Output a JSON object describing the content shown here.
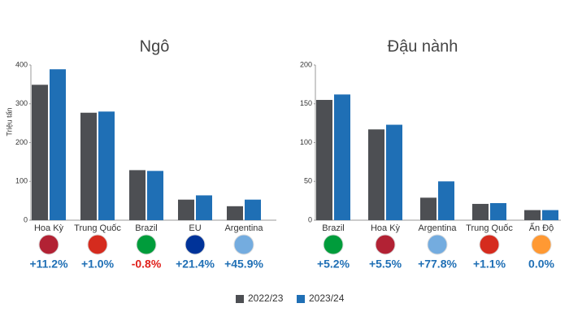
{
  "chart_data": [
    {
      "type": "bar",
      "title": "Ngô",
      "y_label": "Triệu tấn",
      "categories": [
        "Hoa Kỳ",
        "Trung Quốc",
        "Brazil",
        "EU",
        "Argentina"
      ],
      "series": [
        {
          "name": "2022/23",
          "color": "#4d4f53",
          "values": [
            349,
            277,
            129,
            53,
            36
          ]
        },
        {
          "name": "2023/24",
          "color": "#1f6fb5",
          "values": [
            389,
            280,
            127,
            64,
            53
          ]
        }
      ],
      "change_labels": [
        "+11.2%",
        "+1.0%",
        "-0.8%",
        "+21.4%",
        "+45.9%"
      ],
      "ylim": [
        0,
        400
      ],
      "yticks": [
        0,
        100,
        200,
        300,
        400
      ],
      "grid": false
    },
    {
      "type": "bar",
      "title": "Đậu nành",
      "categories": [
        "Brazil",
        "Hoa Kỳ",
        "Argentina",
        "Trung Quốc",
        "Ấn Độ"
      ],
      "series": [
        {
          "name": "2022/23",
          "color": "#4d4f53",
          "values": [
            155,
            117,
            29,
            21,
            13
          ]
        },
        {
          "name": "2023/24",
          "color": "#1f6fb5",
          "values": [
            162,
            123,
            50,
            22,
            13
          ]
        }
      ],
      "change_labels": [
        "+5.2%",
        "+5.5%",
        "+77.8%",
        "+1.1%",
        "0.0%"
      ],
      "ylim": [
        0,
        200
      ],
      "yticks": [
        0,
        50,
        100,
        150,
        200
      ],
      "grid": false
    }
  ]
}
